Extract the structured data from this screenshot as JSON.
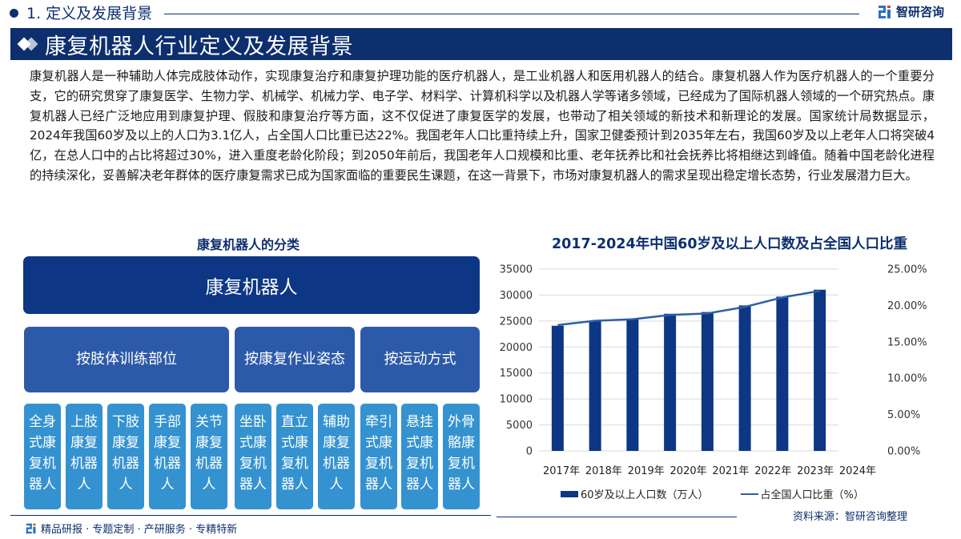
{
  "header": {
    "section_title": "1. 定义及发展背景",
    "brand_name": "智研咨询"
  },
  "banner": {
    "title": "康复机器人行业定义及发展背景"
  },
  "intro": {
    "text": "康复机器人是一种辅助人体完成肢体动作，实现康复治疗和康复护理功能的医疗机器人，是工业机器人和医用机器人的结合。康复机器人作为医疗机器人的一个重要分支，它的研究贯穿了康复医学、生物力学、机械学、机械力学、电子学、材料学、计算机科学以及机器人学等诸多领域，已经成为了国际机器人领域的一个研究热点。康复机器人已经广泛地应用到康复护理、假肢和康复治疗等方面，这不仅促进了康复医学的发展，也带动了相关领域的新技术和新理论的发展。国家统计局数据显示，2024年我国60岁及以上的人口为3.1亿人，占全国人口比重已达22%。我国老年人口比重持续上升，国家卫健委预计到2035年左右，我国60岁及以上老年人口将突破4亿，在总人口中的占比将超过30%，进入重度老龄化阶段；到2050年前后，我国老年人口规模和比重、老年抚养比和社会抚养比将相继达到峰值。随着中国老龄化进程的持续深化，妥善解决老年群体的医疗康复需求已成为国家面临的重要民生课题，在这一背景下，市场对康复机器人的需求呈现出稳定增长态势，行业发展潜力巨大。"
  },
  "classification": {
    "title": "康复机器人的分类",
    "root": "康复机器人",
    "groups": [
      {
        "label": "按肢体训练部位",
        "items": [
          "全身式康复机器人",
          "上肢康复机器人",
          "下肢康复机器人",
          "手部康复机器人",
          "关节康复机器人"
        ]
      },
      {
        "label": "按康复作业姿态",
        "items": [
          "坐卧式康复机器人",
          "直立式康复机器人",
          "辅助康复机器人"
        ]
      },
      {
        "label": "按运动方式",
        "items": [
          "牵引式康复机器人",
          "悬挂式康复机器人",
          "外骨骼康复机器人"
        ]
      }
    ]
  },
  "chart_data": {
    "type": "bar",
    "title": "2017-2024年中国60岁及以上人口数及占全国人口比重",
    "categories": [
      "2017年",
      "2018年",
      "2019年",
      "2020年",
      "2021年",
      "2022年",
      "2023年",
      "2024年"
    ],
    "series": [
      {
        "name": "60岁及以上人口数（万人）",
        "type": "bar",
        "axis": "left",
        "color": "#0d3784",
        "values": [
          24090,
          24949,
          25388,
          26402,
          26736,
          28004,
          29697,
          31031
        ]
      },
      {
        "name": "占全国人口比重（%）",
        "type": "line",
        "axis": "right",
        "color": "#2e5ea8",
        "values": [
          17.3,
          17.9,
          18.1,
          18.7,
          18.9,
          19.8,
          21.1,
          22.0
        ]
      }
    ],
    "y_left": {
      "min": 0,
      "max": 35000,
      "ticks": [
        "0",
        "5000",
        "10000",
        "15000",
        "20000",
        "25000",
        "30000",
        "35000"
      ]
    },
    "y_right": {
      "min": 0,
      "max": 25,
      "ticks": [
        "0.00%",
        "5.00%",
        "10.00%",
        "15.00%",
        "20.00%",
        "25.00%"
      ]
    },
    "grid": true,
    "legend_position": "bottom",
    "source": "资料来源：智研咨询整理"
  },
  "legend": {
    "bar_label": "60岁及以上人口数（万人）",
    "line_label": "占全国人口比重（%）"
  },
  "footer": {
    "tagline": "精品研报 · 专题定制 · 产研服务 · 专精特新"
  }
}
